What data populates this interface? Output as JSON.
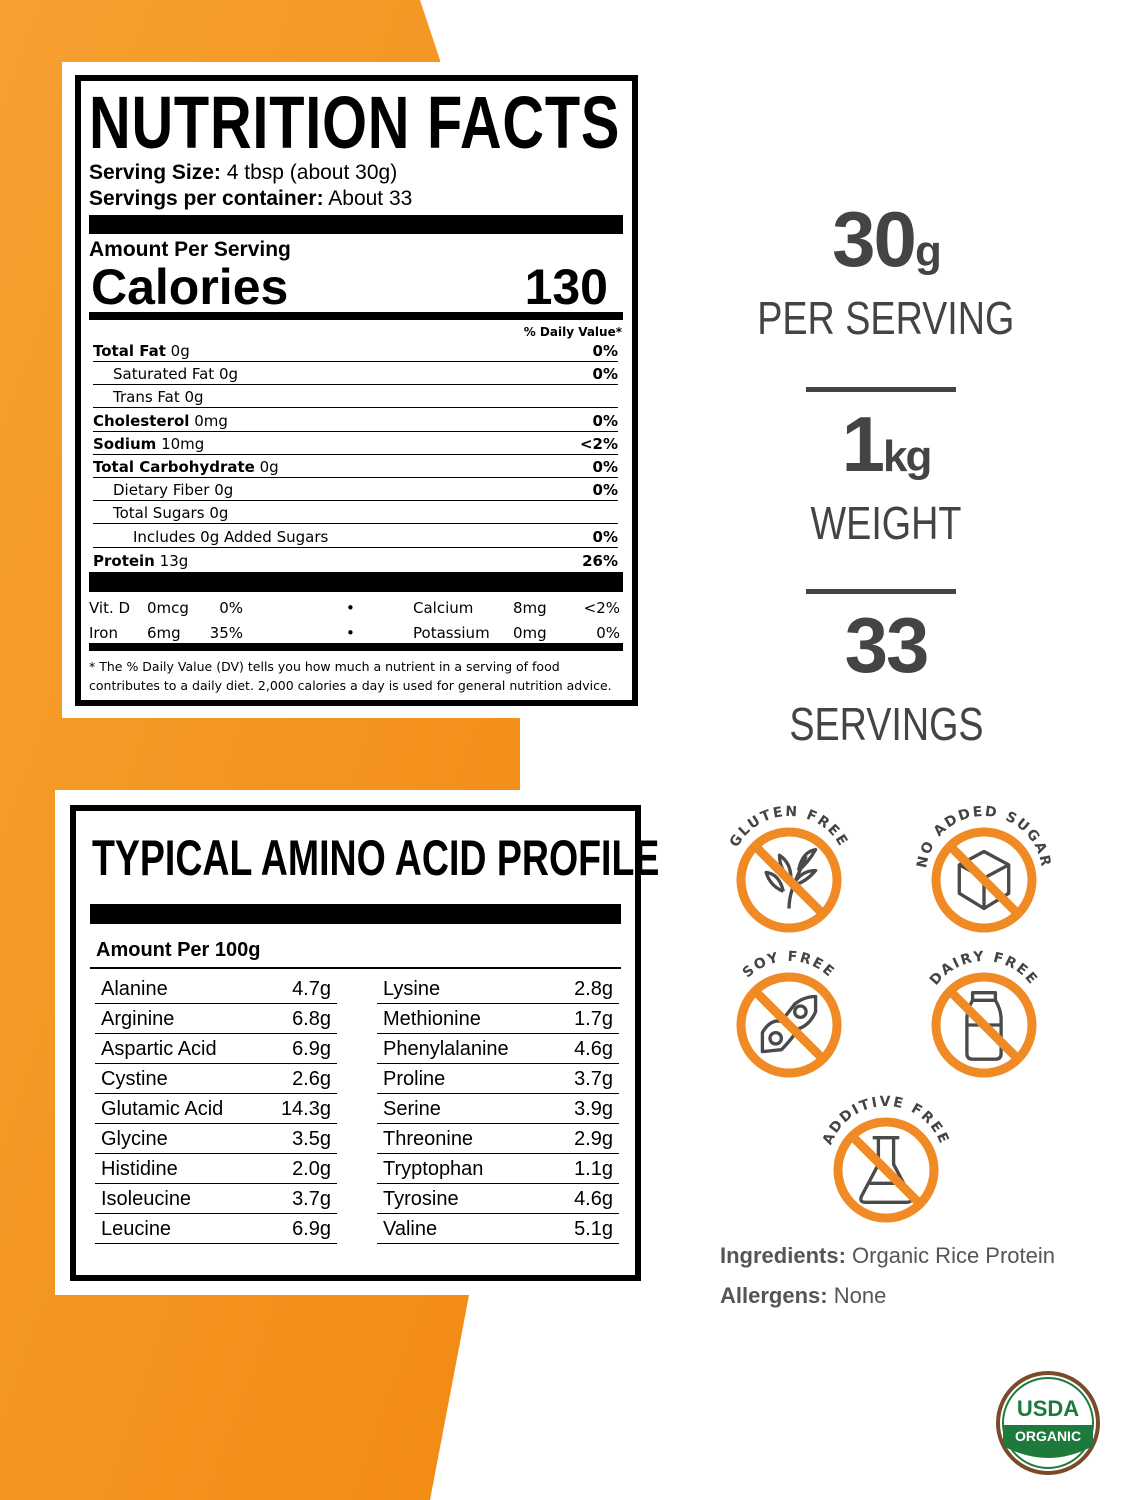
{
  "nutrition": {
    "title": "NUTRITION FACTS",
    "serving_size_label": "Serving Size:",
    "serving_size": "4 tbsp (about 30g)",
    "servings_label": "Servings per container:",
    "servings": "About 33",
    "amount_per_serving": "Amount Per Serving",
    "calories_label": "Calories",
    "calories": "130",
    "dv_header": "% Daily Value*",
    "rows": [
      {
        "name": "Total Fat",
        "amount": "0g",
        "dv": "0%",
        "bold": true
      },
      {
        "name": "Saturated Fat",
        "amount": "0g",
        "dv": "0%",
        "indent": 1
      },
      {
        "name": "Trans Fat",
        "amount": "0g",
        "dv": "",
        "indent": 1
      },
      {
        "name": "Cholesterol",
        "amount": "0mg",
        "dv": "0%",
        "bold": true
      },
      {
        "name": "Sodium",
        "amount": "10mg",
        "dv": "<2%",
        "bold": true
      },
      {
        "name": "Total Carbohydrate",
        "amount": "0g",
        "dv": "0%",
        "bold": true
      },
      {
        "name": "Dietary Fiber",
        "amount": "0g",
        "dv": "0%",
        "indent": 1
      },
      {
        "name": "Total Sugars",
        "amount": "0g",
        "dv": "",
        "indent": 1
      },
      {
        "name": "Includes 0g Added Sugars",
        "amount": "",
        "dv": "0%",
        "indent": 2
      },
      {
        "name": "Protein",
        "amount": "13g",
        "dv": "26%",
        "bold": true
      }
    ],
    "minerals": [
      {
        "name": "Vit. D",
        "amount": "0mcg",
        "dv": "0%",
        "name2": "Calcium",
        "amount2": "8mg",
        "dv2": "<2%"
      },
      {
        "name": "Iron",
        "amount": "6mg",
        "dv": "35%",
        "name2": "Potassium",
        "amount2": "0mg",
        "dv2": "0%"
      }
    ],
    "bullet": "•",
    "footnote_1": "* The % Daily Value (DV) tells you how much a nutrient in a serving of food",
    "footnote_2": "contributes to a daily diet. 2,000 calories a day is used for general nutrition advice."
  },
  "amino": {
    "title": "TYPICAL AMINO ACID PROFILE",
    "subtitle": "Amount Per 100g",
    "left": [
      [
        "Alanine",
        "4.7g"
      ],
      [
        "Arginine",
        "6.8g"
      ],
      [
        "Aspartic Acid",
        "6.9g"
      ],
      [
        "Cystine",
        "2.6g"
      ],
      [
        "Glutamic Acid",
        "14.3g"
      ],
      [
        "Glycine",
        "3.5g"
      ],
      [
        "Histidine",
        "2.0g"
      ],
      [
        "Isoleucine",
        "3.7g"
      ],
      [
        "Leucine",
        "6.9g"
      ]
    ],
    "right": [
      [
        "Lysine",
        "2.8g"
      ],
      [
        "Methionine",
        "1.7g"
      ],
      [
        "Phenylalanine",
        "4.6g"
      ],
      [
        "Proline",
        "3.7g"
      ],
      [
        "Serine",
        "3.9g"
      ],
      [
        "Threonine",
        "2.9g"
      ],
      [
        "Tryptophan",
        "1.1g"
      ],
      [
        "Tyrosine",
        "4.6g"
      ],
      [
        "Valine",
        "5.1g"
      ]
    ]
  },
  "stats": [
    {
      "value": "30",
      "unit": "g",
      "label": "PER SERVING"
    },
    {
      "value": "1",
      "unit": "kg",
      "label": "WEIGHT"
    },
    {
      "value": "33",
      "unit": "",
      "label": "SERVINGS"
    }
  ],
  "badges": [
    {
      "label": "GLUTEN FREE",
      "icon": "wheat-icon"
    },
    {
      "label": "NO ADDED SUGAR",
      "icon": "sugar-cube-icon"
    },
    {
      "label": "SOY FREE",
      "icon": "soybean-icon"
    },
    {
      "label": "DAIRY FREE",
      "icon": "milk-bottle-icon"
    },
    {
      "label": "ADDITIVE FREE",
      "icon": "flask-icon"
    }
  ],
  "ingredients_label": "Ingredients:",
  "ingredients": "Organic Rice Protein",
  "allergens_label": "Allergens:",
  "allergens": "None",
  "usda": {
    "line1": "USDA",
    "line2": "ORGANIC"
  },
  "colors": {
    "orange": "#f7931e",
    "badge_orange": "#f08a24",
    "text_gray": "#444444",
    "usda_green": "#1e7a3c",
    "usda_brown": "#7a4a2a"
  }
}
